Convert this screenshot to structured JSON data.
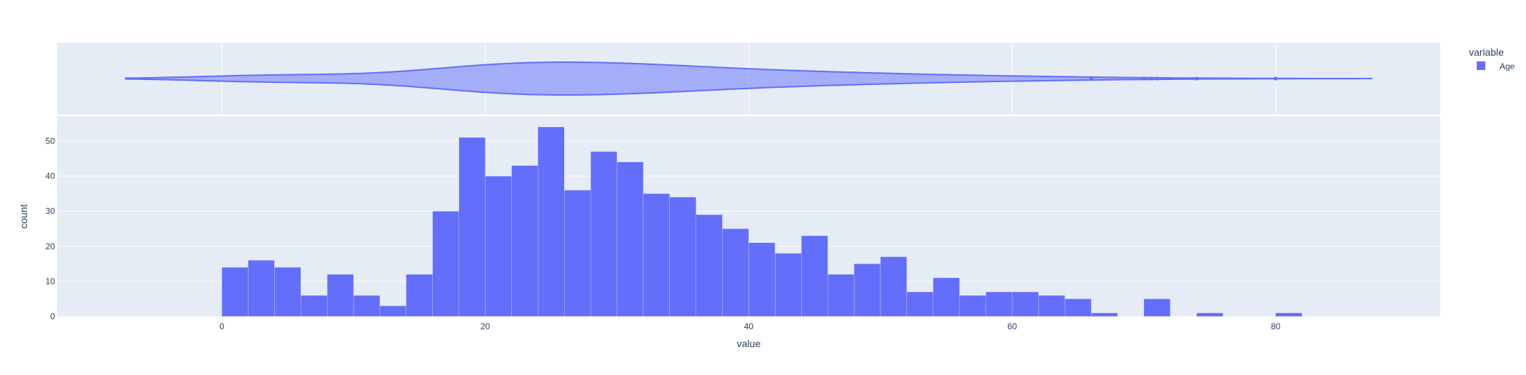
{
  "chart_data": {
    "type": "bar",
    "subtype": "histogram-with-marginal-violin",
    "xlabel": "value",
    "ylabel": "count",
    "x_range": [
      -12.5,
      92.5
    ],
    "x_ticks": [
      0,
      20,
      40,
      60,
      80
    ],
    "y_range": [
      0,
      57
    ],
    "y_ticks": [
      0,
      10,
      20,
      30,
      40,
      50
    ],
    "bin_width": 2,
    "bin_starts": [
      0,
      2,
      4,
      6,
      8,
      10,
      12,
      14,
      16,
      18,
      20,
      22,
      24,
      26,
      28,
      30,
      32,
      34,
      36,
      38,
      40,
      42,
      44,
      46,
      48,
      50,
      52,
      54,
      56,
      58,
      60,
      62,
      64,
      66,
      68,
      70,
      72,
      74,
      76,
      78,
      80
    ],
    "values": [
      14,
      16,
      14,
      6,
      12,
      6,
      3,
      12,
      30,
      51,
      40,
      43,
      54,
      36,
      47,
      44,
      35,
      34,
      29,
      25,
      21,
      18,
      23,
      12,
      15,
      17,
      7,
      11,
      6,
      7,
      7,
      6,
      5,
      1,
      0,
      5,
      0,
      1,
      0,
      0,
      1
    ],
    "violin": {
      "x_extent": [
        -7.3,
        87.3
      ],
      "outliers": [
        66,
        70,
        70.5,
        71,
        74,
        80
      ]
    },
    "series": [
      {
        "name": "Age",
        "color": "#636efa"
      }
    ],
    "legend": {
      "title": "variable",
      "placement": "top-right"
    },
    "grid": true
  },
  "colors": {
    "plot_bg": "#e5ecf6",
    "grid": "#ffffff",
    "text": "#2a3f5f",
    "bar": "#636efa"
  }
}
